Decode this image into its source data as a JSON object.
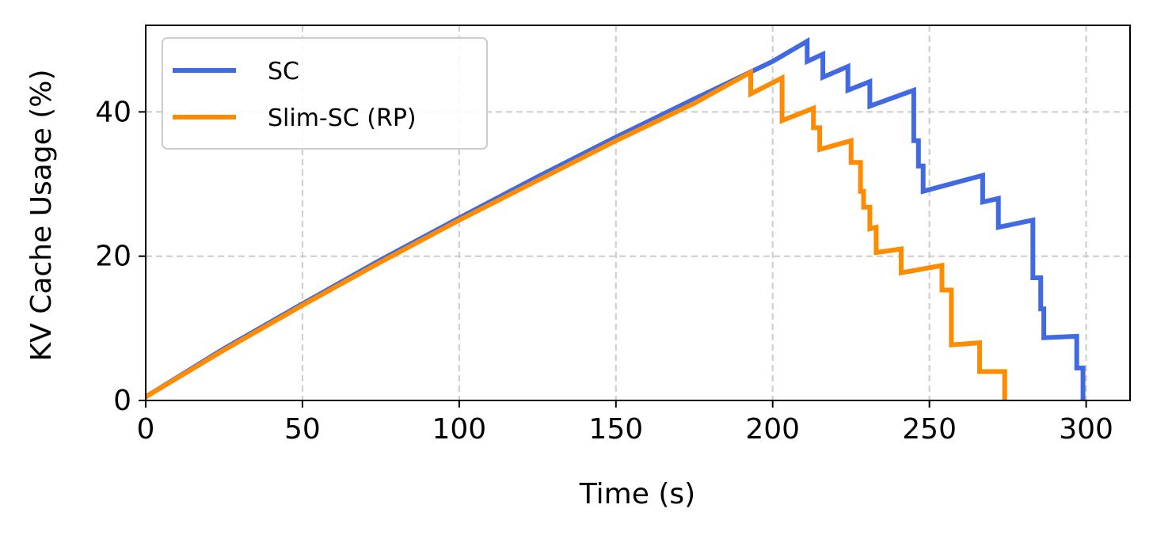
{
  "chart_data": {
    "type": "line",
    "title": "",
    "xlabel": "Time (s)",
    "ylabel": "KV Cache Usage (%)",
    "xlim": [
      0,
      314
    ],
    "ylim": [
      0,
      52
    ],
    "xticks": [
      0,
      50,
      100,
      150,
      200,
      250,
      300
    ],
    "yticks": [
      0,
      20,
      40
    ],
    "grid": true,
    "legend_position": "top-left",
    "series": [
      {
        "name": "SC",
        "color": "#4169e1",
        "points": [
          [
            0,
            0.5
          ],
          [
            25,
            7.2
          ],
          [
            50,
            13.4
          ],
          [
            75,
            19.5
          ],
          [
            100,
            25.3
          ],
          [
            125,
            31.0
          ],
          [
            150,
            36.5
          ],
          [
            175,
            41.8
          ],
          [
            200,
            47.0
          ],
          [
            211,
            49.8
          ],
          [
            211,
            47.0
          ],
          [
            216,
            48.0
          ],
          [
            216,
            44.8
          ],
          [
            224,
            46.3
          ],
          [
            224,
            43.0
          ],
          [
            231,
            44.2
          ],
          [
            231,
            40.8
          ],
          [
            245,
            43.0
          ],
          [
            245,
            36.0
          ],
          [
            246.5,
            36.0
          ],
          [
            246.5,
            32.5
          ],
          [
            248,
            32.5
          ],
          [
            248,
            29.0
          ],
          [
            267,
            31.2
          ],
          [
            267,
            27.5
          ],
          [
            272,
            28.0
          ],
          [
            272,
            24.0
          ],
          [
            283,
            25.0
          ],
          [
            283,
            17.0
          ],
          [
            285.5,
            17.0
          ],
          [
            285.5,
            12.7
          ],
          [
            286.5,
            12.7
          ],
          [
            286.5,
            8.7
          ],
          [
            297,
            8.9
          ],
          [
            297,
            4.5
          ],
          [
            299,
            4.5
          ],
          [
            299,
            0
          ]
        ]
      },
      {
        "name": "Slim-SC (RP)",
        "color": "#ff8c00",
        "points": [
          [
            0,
            0.5
          ],
          [
            25,
            7.0
          ],
          [
            50,
            13.2
          ],
          [
            75,
            19.2
          ],
          [
            100,
            25.0
          ],
          [
            125,
            30.5
          ],
          [
            150,
            36.0
          ],
          [
            175,
            41.2
          ],
          [
            193,
            45.5
          ],
          [
            193,
            42.5
          ],
          [
            203,
            44.7
          ],
          [
            203,
            38.8
          ],
          [
            213,
            40.5
          ],
          [
            213,
            37.8
          ],
          [
            215,
            37.8
          ],
          [
            215,
            34.8
          ],
          [
            225,
            36.0
          ],
          [
            225,
            33.0
          ],
          [
            228,
            33.0
          ],
          [
            228,
            29.0
          ],
          [
            229,
            29.0
          ],
          [
            229,
            26.8
          ],
          [
            231,
            26.8
          ],
          [
            231,
            23.8
          ],
          [
            233,
            24.0
          ],
          [
            233,
            20.5
          ],
          [
            241,
            21.0
          ],
          [
            241,
            17.7
          ],
          [
            254,
            18.7
          ],
          [
            254,
            15.3
          ],
          [
            257,
            15.3
          ],
          [
            257,
            7.7
          ],
          [
            266,
            8.0
          ],
          [
            266,
            4.0
          ],
          [
            274,
            4.0
          ],
          [
            274,
            0
          ]
        ]
      }
    ]
  }
}
